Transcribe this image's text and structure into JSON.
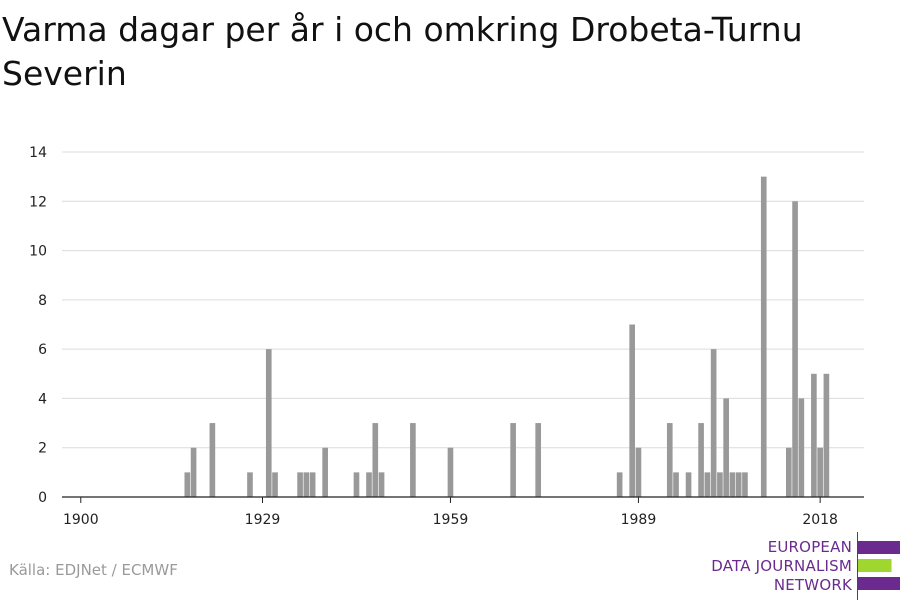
{
  "title": "Varma dagar per år i och omkring Drobeta-Turnu Severin",
  "source": "Källa: EDJNet / ECMWF",
  "logo": {
    "lines": [
      "EUROPEAN",
      "DATA JOURNALISM",
      "NETWORK"
    ],
    "colors": {
      "purple": "#6b2b8e",
      "green": "#9fd62f"
    }
  },
  "chart_data": {
    "type": "bar",
    "title": "Varma dagar per år i och omkring Drobeta-Turnu Severin",
    "xlabel": "",
    "ylabel": "",
    "xlim": [
      1897,
      2025
    ],
    "ylim": [
      0,
      14
    ],
    "x_ticks": [
      1900,
      1929,
      1959,
      1989,
      2018
    ],
    "y_ticks": [
      0,
      2,
      4,
      6,
      8,
      10,
      12,
      14
    ],
    "grid": true,
    "bar_color": "#999999",
    "x": [
      1917,
      1918,
      1921,
      1927,
      1930,
      1931,
      1935,
      1936,
      1937,
      1939,
      1944,
      1946,
      1947,
      1948,
      1953,
      1959,
      1969,
      1973,
      1986,
      1988,
      1989,
      1994,
      1995,
      1997,
      1999,
      2000,
      2001,
      2002,
      2003,
      2004,
      2005,
      2006,
      2009,
      2013,
      2014,
      2015,
      2017,
      2018,
      2019
    ],
    "values": [
      1,
      2,
      3,
      1,
      6,
      1,
      1,
      1,
      1,
      2,
      1,
      1,
      3,
      1,
      3,
      2,
      3,
      3,
      1,
      7,
      2,
      3,
      1,
      1,
      3,
      1,
      6,
      1,
      4,
      1,
      1,
      1,
      13,
      2,
      12,
      4,
      5,
      2,
      5
    ]
  }
}
